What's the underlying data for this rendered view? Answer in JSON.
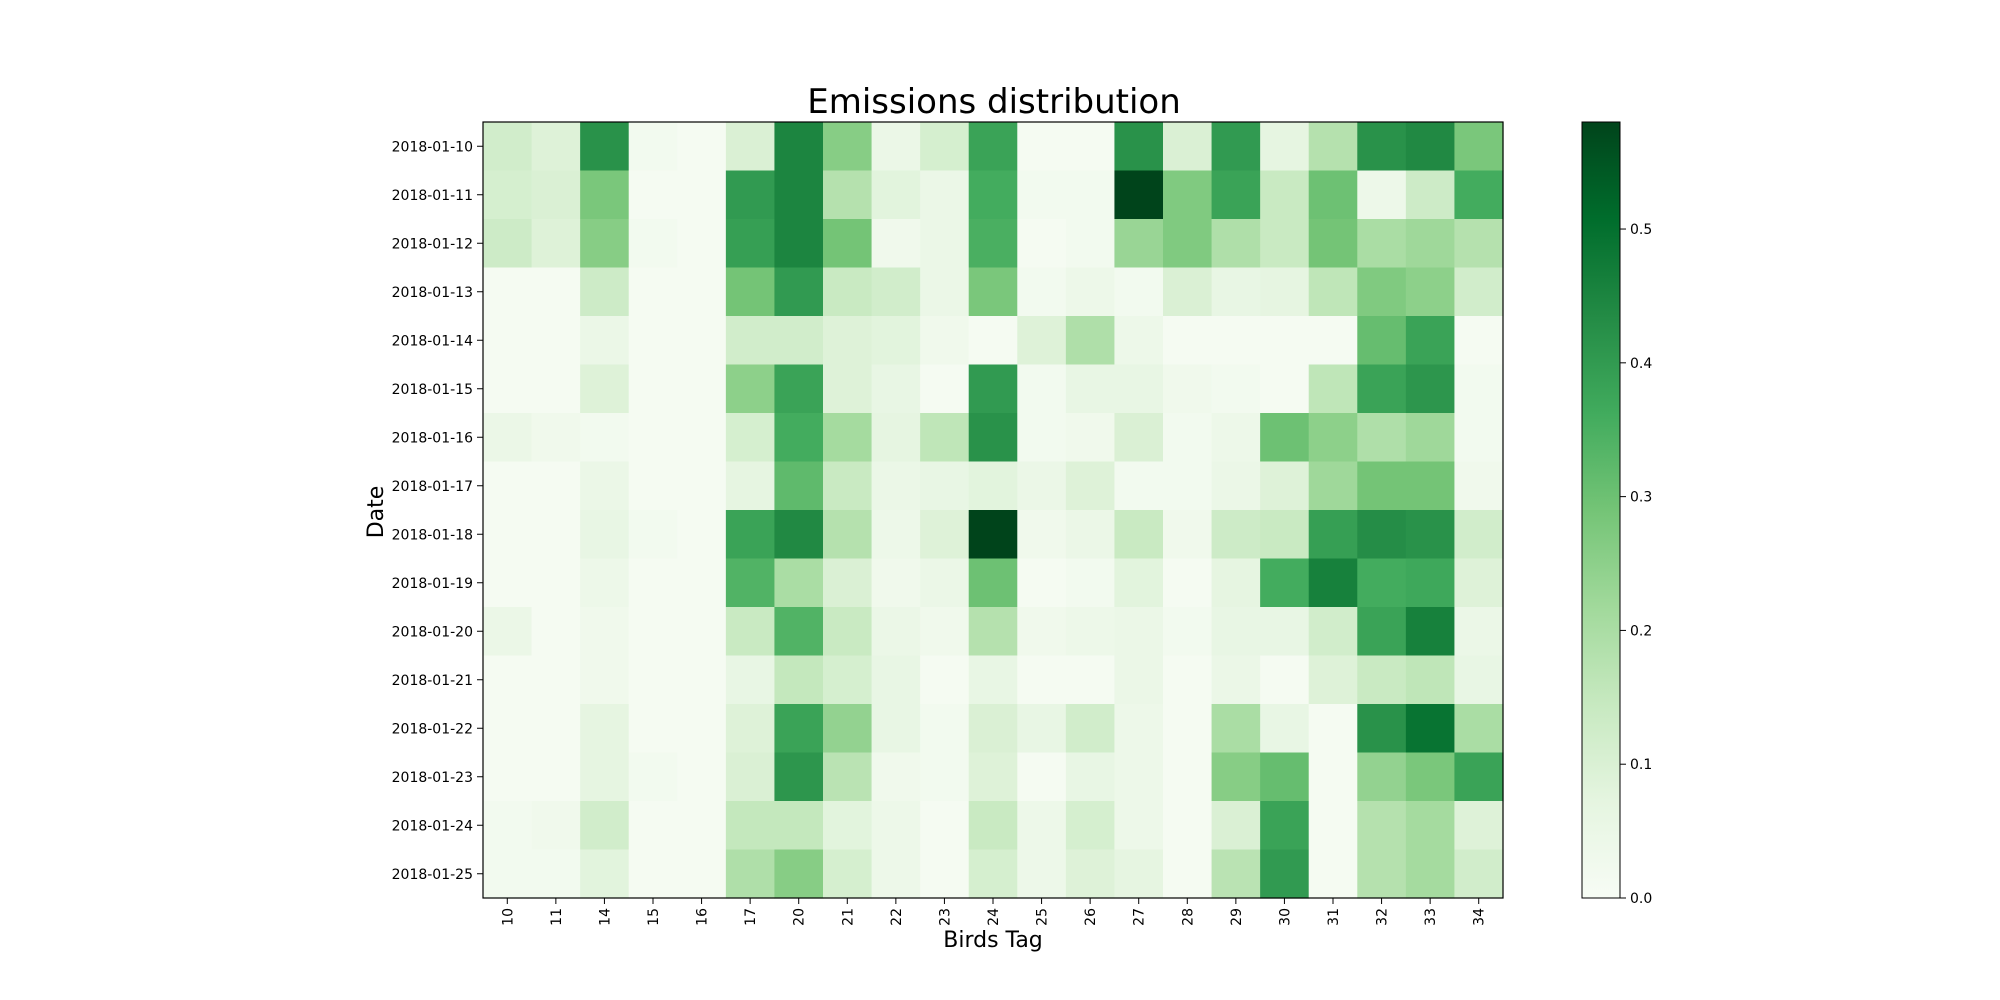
{
  "chart_data": {
    "type": "heatmap",
    "title": "Emissions distribution",
    "xlabel": "Birds Tag",
    "ylabel": "Date",
    "x_categories": [
      "10",
      "11",
      "14",
      "15",
      "16",
      "17",
      "20",
      "21",
      "22",
      "23",
      "24",
      "25",
      "26",
      "27",
      "28",
      "29",
      "30",
      "31",
      "32",
      "33",
      "34"
    ],
    "y_categories": [
      "2018-01-10",
      "2018-01-11",
      "2018-01-12",
      "2018-01-13",
      "2018-01-14",
      "2018-01-15",
      "2018-01-16",
      "2018-01-17",
      "2018-01-18",
      "2018-01-19",
      "2018-01-20",
      "2018-01-21",
      "2018-01-22",
      "2018-01-23",
      "2018-01-24",
      "2018-01-25"
    ],
    "values": [
      [
        0.12,
        0.09,
        0.42,
        0.02,
        0.01,
        0.1,
        0.45,
        0.26,
        0.05,
        0.11,
        0.38,
        0.01,
        0.01,
        0.42,
        0.1,
        0.4,
        0.07,
        0.18,
        0.42,
        0.44,
        0.28
      ],
      [
        0.11,
        0.1,
        0.28,
        0.01,
        0.01,
        0.4,
        0.45,
        0.18,
        0.08,
        0.05,
        0.36,
        0.02,
        0.02,
        0.58,
        0.27,
        0.38,
        0.14,
        0.3,
        0.04,
        0.13,
        0.36
      ],
      [
        0.13,
        0.09,
        0.26,
        0.02,
        0.01,
        0.39,
        0.45,
        0.29,
        0.03,
        0.05,
        0.35,
        0.01,
        0.02,
        0.23,
        0.27,
        0.19,
        0.14,
        0.29,
        0.2,
        0.22,
        0.18
      ],
      [
        0.01,
        0.01,
        0.13,
        0.01,
        0.01,
        0.29,
        0.4,
        0.14,
        0.12,
        0.05,
        0.28,
        0.02,
        0.04,
        0.02,
        0.1,
        0.06,
        0.07,
        0.16,
        0.27,
        0.25,
        0.12
      ],
      [
        0.01,
        0.01,
        0.05,
        0.01,
        0.01,
        0.12,
        0.12,
        0.09,
        0.08,
        0.03,
        0.01,
        0.09,
        0.19,
        0.04,
        0.01,
        0.01,
        0.01,
        0.01,
        0.31,
        0.38,
        0.01
      ],
      [
        0.01,
        0.01,
        0.09,
        0.01,
        0.01,
        0.25,
        0.38,
        0.09,
        0.06,
        0.01,
        0.4,
        0.02,
        0.06,
        0.06,
        0.03,
        0.02,
        0.01,
        0.16,
        0.38,
        0.41,
        0.02
      ],
      [
        0.05,
        0.03,
        0.02,
        0.01,
        0.01,
        0.11,
        0.36,
        0.21,
        0.07,
        0.16,
        0.42,
        0.02,
        0.03,
        0.1,
        0.02,
        0.04,
        0.3,
        0.25,
        0.19,
        0.22,
        0.02
      ],
      [
        0.01,
        0.01,
        0.05,
        0.01,
        0.01,
        0.07,
        0.32,
        0.14,
        0.05,
        0.06,
        0.08,
        0.05,
        0.09,
        0.02,
        0.02,
        0.05,
        0.09,
        0.22,
        0.29,
        0.29,
        0.03
      ],
      [
        0.01,
        0.01,
        0.06,
        0.02,
        0.01,
        0.38,
        0.44,
        0.18,
        0.04,
        0.09,
        0.58,
        0.03,
        0.05,
        0.14,
        0.03,
        0.13,
        0.14,
        0.39,
        0.43,
        0.42,
        0.12
      ],
      [
        0.01,
        0.01,
        0.04,
        0.01,
        0.01,
        0.34,
        0.2,
        0.1,
        0.03,
        0.05,
        0.3,
        0.01,
        0.02,
        0.08,
        0.01,
        0.07,
        0.36,
        0.46,
        0.36,
        0.37,
        0.09
      ],
      [
        0.05,
        0.01,
        0.03,
        0.01,
        0.01,
        0.14,
        0.34,
        0.14,
        0.05,
        0.03,
        0.18,
        0.03,
        0.04,
        0.05,
        0.02,
        0.06,
        0.06,
        0.12,
        0.38,
        0.46,
        0.05
      ],
      [
        0.01,
        0.01,
        0.03,
        0.01,
        0.01,
        0.06,
        0.15,
        0.11,
        0.06,
        0.01,
        0.06,
        0.01,
        0.01,
        0.05,
        0.01,
        0.05,
        0.01,
        0.09,
        0.14,
        0.16,
        0.06
      ],
      [
        0.01,
        0.01,
        0.07,
        0.01,
        0.01,
        0.09,
        0.38,
        0.24,
        0.06,
        0.02,
        0.1,
        0.06,
        0.12,
        0.04,
        0.01,
        0.2,
        0.06,
        0.01,
        0.42,
        0.49,
        0.2
      ],
      [
        0.01,
        0.01,
        0.07,
        0.02,
        0.01,
        0.1,
        0.41,
        0.17,
        0.03,
        0.02,
        0.09,
        0.01,
        0.06,
        0.04,
        0.01,
        0.26,
        0.31,
        0.01,
        0.24,
        0.28,
        0.38
      ],
      [
        0.02,
        0.03,
        0.12,
        0.01,
        0.01,
        0.15,
        0.15,
        0.08,
        0.04,
        0.01,
        0.14,
        0.04,
        0.11,
        0.04,
        0.01,
        0.1,
        0.38,
        0.01,
        0.18,
        0.21,
        0.09
      ],
      [
        0.02,
        0.02,
        0.08,
        0.01,
        0.01,
        0.19,
        0.26,
        0.11,
        0.04,
        0.01,
        0.11,
        0.04,
        0.09,
        0.07,
        0.01,
        0.17,
        0.4,
        0.01,
        0.18,
        0.21,
        0.12
      ]
    ],
    "vmin": 0.0,
    "vmax": 0.58,
    "colormap": "Greens",
    "colorbar_ticks": [
      "0.0",
      "0.1",
      "0.2",
      "0.3",
      "0.4",
      "0.5"
    ],
    "colorbar_tick_values": [
      0.0,
      0.1,
      0.2,
      0.3,
      0.4,
      0.5
    ],
    "colors": {
      "low": "#f7fcf5",
      "high": "#00441b"
    }
  }
}
